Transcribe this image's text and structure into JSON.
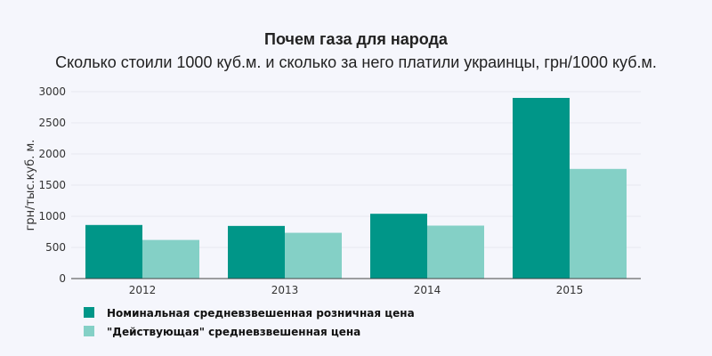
{
  "colors": {
    "series_1": "#009688",
    "series_2": "#84d0c6",
    "background": "#f5f6fc"
  },
  "chart_data": {
    "type": "bar",
    "title": "Почем газа для народа",
    "subtitle": "Сколько стоили 1000 куб.м. и сколько за него платили украинцы, грн/1000 куб.м.",
    "xlabel": "",
    "ylabel": "грн/тыс.куб. м.",
    "categories": [
      "2012",
      "2013",
      "2014",
      "2015"
    ],
    "ylim": [
      0,
      3000
    ],
    "yticks": [
      0,
      500,
      1000,
      1500,
      2000,
      2500,
      3000
    ],
    "grid": true,
    "legend_position": "bottom-left",
    "series": [
      {
        "name": "Номинальная средневзвешенная розничная цена",
        "values": [
          860,
          845,
          1040,
          2900
        ]
      },
      {
        "name": "\"Действующая\" средневзвешенная цена",
        "values": [
          620,
          735,
          850,
          1760
        ]
      }
    ]
  }
}
